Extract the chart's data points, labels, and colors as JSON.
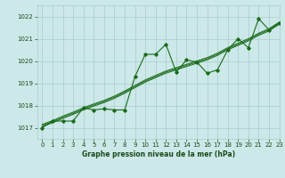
{
  "title": "Graphe pression niveau de la mer (hPa)",
  "background_color": "#cce8e8",
  "grid_color": "#aacccc",
  "line_color": "#1a6b1a",
  "marker_color": "#1a6b1a",
  "xlim": [
    -0.5,
    23
  ],
  "ylim": [
    1016.5,
    1022.5
  ],
  "yticks": [
    1017,
    1018,
    1019,
    1020,
    1021,
    1022
  ],
  "xticks": [
    0,
    1,
    2,
    3,
    4,
    5,
    6,
    7,
    8,
    9,
    10,
    11,
    12,
    13,
    14,
    15,
    16,
    17,
    18,
    19,
    20,
    21,
    22,
    23
  ],
  "series": {
    "main": [
      1017.0,
      1017.3,
      1017.3,
      1017.3,
      1017.9,
      1017.8,
      1017.85,
      1017.8,
      1017.8,
      1019.3,
      1020.3,
      1020.3,
      1020.75,
      1019.5,
      1020.05,
      1019.95,
      1019.45,
      1019.6,
      1020.5,
      1021.0,
      1020.6,
      1021.9,
      1021.4,
      1021.7
    ],
    "smooth1": [
      1017.05,
      1017.22,
      1017.42,
      1017.6,
      1017.8,
      1017.97,
      1018.13,
      1018.32,
      1018.55,
      1018.8,
      1019.05,
      1019.25,
      1019.45,
      1019.6,
      1019.75,
      1019.9,
      1020.05,
      1020.25,
      1020.5,
      1020.7,
      1020.9,
      1021.15,
      1021.35,
      1021.65
    ],
    "smooth2": [
      1017.1,
      1017.27,
      1017.47,
      1017.65,
      1017.85,
      1018.02,
      1018.18,
      1018.37,
      1018.6,
      1018.85,
      1019.1,
      1019.3,
      1019.5,
      1019.65,
      1019.8,
      1019.95,
      1020.1,
      1020.3,
      1020.55,
      1020.75,
      1020.95,
      1021.2,
      1021.4,
      1021.7
    ],
    "smooth3": [
      1017.15,
      1017.32,
      1017.52,
      1017.7,
      1017.9,
      1018.07,
      1018.23,
      1018.42,
      1018.65,
      1018.9,
      1019.15,
      1019.35,
      1019.55,
      1019.7,
      1019.85,
      1020.0,
      1020.15,
      1020.35,
      1020.6,
      1020.8,
      1021.0,
      1021.25,
      1021.45,
      1021.75
    ]
  }
}
